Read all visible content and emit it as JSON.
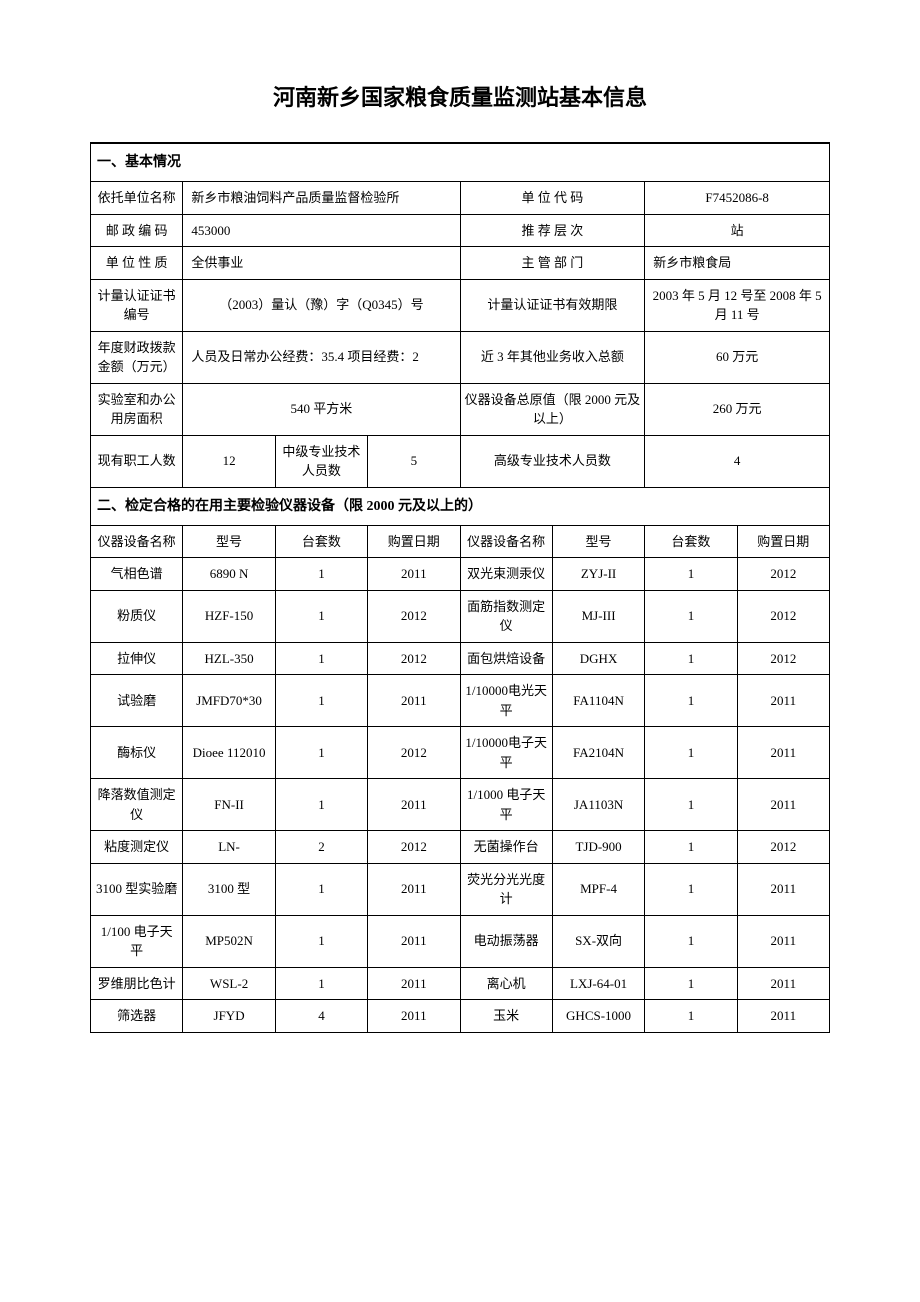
{
  "title": "河南新乡国家粮食质量监测站基本信息",
  "section1": {
    "header": "一、基本情况",
    "org_name_label": "依托单位名称",
    "org_name": "新乡市粮油饲料产品质量监督检验所",
    "unit_code_label": "单 位 代 码",
    "unit_code": "F7452086-8",
    "postal_label": "邮 政 编 码",
    "postal": "453000",
    "rec_level_label": "推 荐 层 次",
    "rec_level": "站",
    "unit_nature_label": "单 位 性 质",
    "unit_nature": "全供事业",
    "supervisor_label": "主 管 部 门",
    "supervisor": "新乡市粮食局",
    "cert_no_label": "计量认证证书编号",
    "cert_no": "（2003）量认（豫）字（Q0345）号",
    "cert_valid_label": "计量认证证书有效期限",
    "cert_valid": "2003 年 5 月 12 号至 2008 年 5 月 11 号",
    "fund_label": "年度财政拨款金额（万元）",
    "fund": "人员及日常办公经费：35.4 项目经费：2",
    "income_label": "近 3 年其他业务收入总额",
    "income": "60 万元",
    "area_label": "实验室和办公用房面积",
    "area": "540 平方米",
    "equip_val_label": "仪器设备总原值（限 2000 元及以上）",
    "equip_val": "260 万元",
    "staff_label": "现有职工人数",
    "staff": "12",
    "mid_tech_label": "中级专业技术人员数",
    "mid_tech": "5",
    "senior_tech_label": "高级专业技术人员数",
    "senior_tech": "4"
  },
  "section2": {
    "header": "二、检定合格的在用主要检验仪器设备（限 2000 元及以上的）",
    "columns": [
      "仪器设备名称",
      "型号",
      "台套数",
      "购置日期",
      "仪器设备名称",
      "型号",
      "台套数",
      "购置日期"
    ],
    "rows": [
      [
        "气相色谱",
        "6890 N",
        "1",
        "2011",
        "双光束测汞仪",
        "ZYJ-II",
        "1",
        "2012"
      ],
      [
        "粉质仪",
        "HZF-150",
        "1",
        "2012",
        "面筋指数测定仪",
        "MJ-III",
        "1",
        "2012"
      ],
      [
        "拉伸仪",
        "HZL-350",
        "1",
        "2012",
        "面包烘焙设备",
        "DGHX",
        "1",
        "2012"
      ],
      [
        "试验磨",
        "JMFD70*30",
        "1",
        "2011",
        "1/10000电光天平",
        "FA1104N",
        "1",
        "2011"
      ],
      [
        "酶标仪",
        "Dioee 112010",
        "1",
        "2012",
        "1/10000电子天平",
        "FA2104N",
        "1",
        "2011"
      ],
      [
        "降落数值测定仪",
        "FN-II",
        "1",
        "2011",
        "1/1000 电子天平",
        "JA1103N",
        "1",
        "2011"
      ],
      [
        "粘度测定仪",
        "LN-",
        "2",
        "2012",
        "无菌操作台",
        "TJD-900",
        "1",
        "2012"
      ],
      [
        "3100 型实验磨",
        "3100 型",
        "1",
        "2011",
        "荧光分光光度计",
        "MPF-4",
        "1",
        "2011"
      ],
      [
        "1/100 电子天平",
        "MP502N",
        "1",
        "2011",
        "电动振荡器",
        "SX-双向",
        "1",
        "2011"
      ],
      [
        "罗维朋比色计",
        "WSL-2",
        "1",
        "2011",
        "离心机",
        "LXJ-64-01",
        "1",
        "2011"
      ],
      [
        "筛选器",
        "JFYD",
        "4",
        "2011",
        "玉米",
        "GHCS-1000",
        "1",
        "2011"
      ]
    ]
  }
}
